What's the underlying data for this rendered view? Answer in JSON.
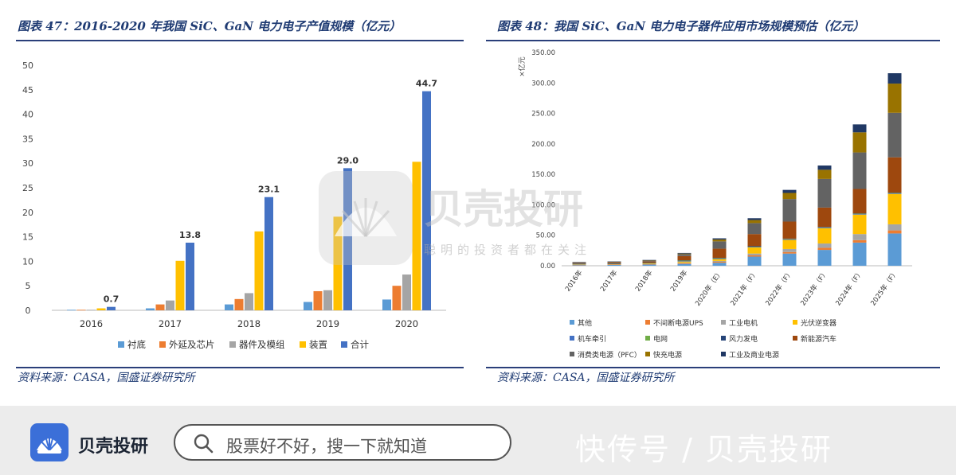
{
  "left_panel": {
    "title": "图表 47：2016-2020 年我国 SiC、GaN 电力电子产值规模（亿元）",
    "source": "资料来源：CASA，国盛证券研究所"
  },
  "right_panel": {
    "title": "图表 48：我国 SiC、GaN 电力电子器件应用市场规模预估（亿元）",
    "source": "资料来源：CASA，国盛证券研究所"
  },
  "watermark": {
    "brand": "贝壳投研",
    "slogan": "聪明的投资者都在关注"
  },
  "footer": {
    "brand": "贝壳投研",
    "search_placeholder": "股票好不好，搜一下就知道",
    "watermark_text": "快传号 / 贝壳投研"
  },
  "colors": {
    "title": "#1f3b73",
    "rule": "#2a3f7a",
    "brand_blue": "#3b6fd8"
  },
  "chart_data": [
    {
      "type": "bar",
      "categories": [
        "2016",
        "2017",
        "2018",
        "2019",
        "2020"
      ],
      "series": [
        {
          "name": "衬底",
          "color": "#5b9bd5",
          "values": [
            0.1,
            0.4,
            1.2,
            1.7,
            2.2
          ]
        },
        {
          "name": "外延及芯片",
          "color": "#ed7d31",
          "values": [
            0.1,
            1.2,
            2.3,
            3.9,
            5.0
          ]
        },
        {
          "name": "器件及模组",
          "color": "#a5a5a5",
          "values": [
            0.1,
            2.0,
            3.5,
            4.1,
            7.3
          ]
        },
        {
          "name": "装置",
          "color": "#ffc000",
          "values": [
            0.4,
            10.1,
            16.1,
            19.1,
            30.3
          ]
        },
        {
          "name": "合计",
          "color": "#4472c4",
          "values": [
            0.7,
            13.8,
            23.1,
            29.0,
            44.7
          ]
        }
      ],
      "data_labels": [
        "0.7",
        "13.8",
        "23.1",
        "29.0",
        "44.7"
      ],
      "yticks": [
        "0",
        "5",
        "10",
        "15",
        "20",
        "25",
        "30",
        "35",
        "40",
        "45",
        "50"
      ],
      "ylim": [
        0,
        50
      ],
      "legend_position": "bottom"
    },
    {
      "type": "bar",
      "stacked": true,
      "ylabel": "×亿元",
      "categories": [
        "2016年",
        "2017年",
        "2018年",
        "2019年",
        "2020年（E）",
        "2021年（F）",
        "2022年（F）",
        "2023年（F）",
        "2024年（F）",
        "2025年（F）"
      ],
      "series": [
        {
          "name": "其他",
          "color": "#5b9bd5",
          "values": [
            1,
            1.5,
            2,
            3,
            5,
            15,
            20,
            26,
            38,
            53
          ]
        },
        {
          "name": "不间断电源UPS",
          "color": "#ed7d31",
          "values": [
            0.5,
            0.5,
            0.5,
            1,
            1.5,
            2,
            2.5,
            3.5,
            4,
            5
          ]
        },
        {
          "name": "工业电机",
          "color": "#a5a5a5",
          "values": [
            0.5,
            0.5,
            0.5,
            1,
            1.5,
            3,
            5,
            7,
            10,
            10
          ]
        },
        {
          "name": "光伏逆变器",
          "color": "#ffc000",
          "values": [
            0.5,
            0.5,
            1,
            2,
            3,
            10,
            15,
            25,
            32,
            50
          ]
        },
        {
          "name": "机车牵引",
          "color": "#4472c4",
          "values": [
            0.5,
            0.5,
            0.5,
            1,
            1,
            1,
            1,
            1,
            1,
            1
          ]
        },
        {
          "name": "电网",
          "color": "#70ad47",
          "values": [
            0.2,
            0.2,
            0.2,
            0.5,
            0.5,
            0.5,
            0.5,
            0.5,
            0.5,
            0.5
          ]
        },
        {
          "name": "风力发电",
          "color": "#264478",
          "values": [
            0.3,
            0.3,
            0.3,
            0.5,
            0.5,
            0.5,
            0.5,
            0.5,
            0.5,
            0.5
          ]
        },
        {
          "name": "新能源汽车",
          "color": "#9e480e",
          "values": [
            1,
            1.5,
            2,
            7,
            15,
            20,
            28,
            32,
            40,
            58
          ]
        },
        {
          "name": "消费类电源（PFC）",
          "color": "#636363",
          "values": [
            1,
            1,
            1.5,
            3,
            12,
            18,
            37,
            47,
            60,
            73
          ]
        },
        {
          "name": "快充电源",
          "color": "#997300",
          "values": [
            0.3,
            0.3,
            0.5,
            1,
            3,
            5,
            10,
            15,
            33,
            48
          ]
        },
        {
          "name": "工业及商业电源",
          "color": "#203864",
          "values": [
            0.2,
            0.2,
            0.5,
            1,
            2,
            3,
            5,
            7,
            13,
            17
          ]
        }
      ],
      "yticks": [
        "0.00",
        "50.00",
        "100.00",
        "150.00",
        "200.00",
        "250.00",
        "300.00",
        "350.00"
      ],
      "ylim": [
        0,
        350
      ],
      "legend_position": "bottom"
    }
  ]
}
